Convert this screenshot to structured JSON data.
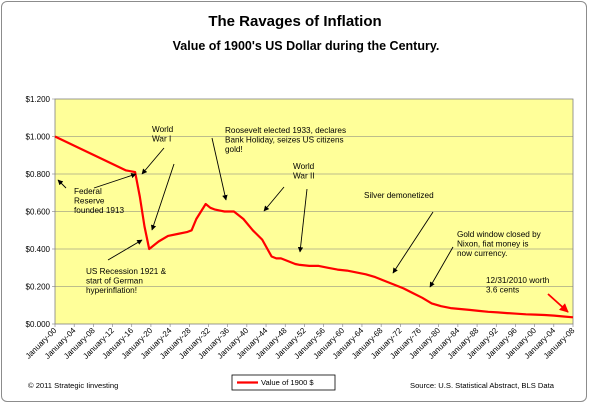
{
  "chart_data": {
    "type": "line",
    "title": "The Ravages  of Inflation",
    "subtitle": "Value of 1900's  US Dollar during the Century.",
    "xlabel": "",
    "ylabel": "",
    "ylim": [
      0,
      1.2
    ],
    "y_ticks": [
      "$0.000",
      "$0.200",
      "$0.400",
      "$0.600",
      "$0.800",
      "$1.000",
      "$1.200"
    ],
    "x_ticks": [
      "January-00",
      "January-04",
      "January-08",
      "January-12",
      "January-16",
      "January-20",
      "January-24",
      "January-28",
      "January-32",
      "January-36",
      "January-40",
      "January-44",
      "January-48",
      "January-52",
      "January-56",
      "January-60",
      "January-64",
      "January-68",
      "January-72",
      "January-76",
      "January-80",
      "January-84",
      "January-88",
      "January-92",
      "January-96",
      "January-00",
      "January-04",
      "January-08"
    ],
    "grid": true,
    "legend_position": "bottom",
    "plot_background": "#ffff99",
    "line_color": "#ff0000",
    "series": [
      {
        "name": "Value of 1900 $",
        "x": [
          1900,
          1905,
          1910,
          1915,
          1917,
          1918,
          1919,
          1920,
          1921,
          1922,
          1924,
          1926,
          1928,
          1929,
          1930,
          1931,
          1932,
          1933,
          1934,
          1935,
          1936,
          1938,
          1940,
          1942,
          1944,
          1946,
          1947,
          1948,
          1950,
          1951,
          1952,
          1954,
          1956,
          1958,
          1960,
          1962,
          1964,
          1966,
          1968,
          1970,
          1972,
          1974,
          1976,
          1978,
          1980,
          1982,
          1984,
          1986,
          1988,
          1990,
          1992,
          1994,
          1996,
          1998,
          2000,
          2002,
          2004,
          2006,
          2008,
          2010
        ],
        "values": [
          1.0,
          0.94,
          0.88,
          0.82,
          0.81,
          0.68,
          0.52,
          0.4,
          0.42,
          0.44,
          0.47,
          0.48,
          0.49,
          0.5,
          0.56,
          0.6,
          0.64,
          0.62,
          0.61,
          0.605,
          0.6,
          0.6,
          0.56,
          0.5,
          0.45,
          0.36,
          0.35,
          0.35,
          0.33,
          0.32,
          0.315,
          0.31,
          0.31,
          0.3,
          0.29,
          0.285,
          0.275,
          0.265,
          0.25,
          0.23,
          0.21,
          0.19,
          0.165,
          0.14,
          0.11,
          0.095,
          0.085,
          0.08,
          0.075,
          0.07,
          0.065,
          0.062,
          0.058,
          0.055,
          0.052,
          0.05,
          0.048,
          0.045,
          0.04,
          0.036
        ]
      }
    ],
    "annotations": [
      {
        "lines": [
          "World",
          "War I"
        ]
      },
      {
        "lines": [
          "Federal",
          "Reserve",
          "founded 1913"
        ]
      },
      {
        "lines": [
          "Roosevelt elected 1933, declares",
          "Bank Holiday, seizes US citizens",
          "gold!"
        ]
      },
      {
        "lines": [
          "World",
          "War II"
        ]
      },
      {
        "lines": [
          "Silver demonetized"
        ]
      },
      {
        "lines": [
          "US Recession 1921  &",
          "start of German",
          "hyperinflation!"
        ]
      },
      {
        "lines": [
          "Gold window closed by",
          "Nixon,  fiat money is",
          "now currency."
        ]
      },
      {
        "lines": [
          "12/31/2010  worth",
          "3.6 cents"
        ]
      }
    ]
  },
  "footer": {
    "copyright": "© 2011 Strategic Iinvesting",
    "source": "Source: U.S.  Statistical Abstract, BLS Data"
  }
}
